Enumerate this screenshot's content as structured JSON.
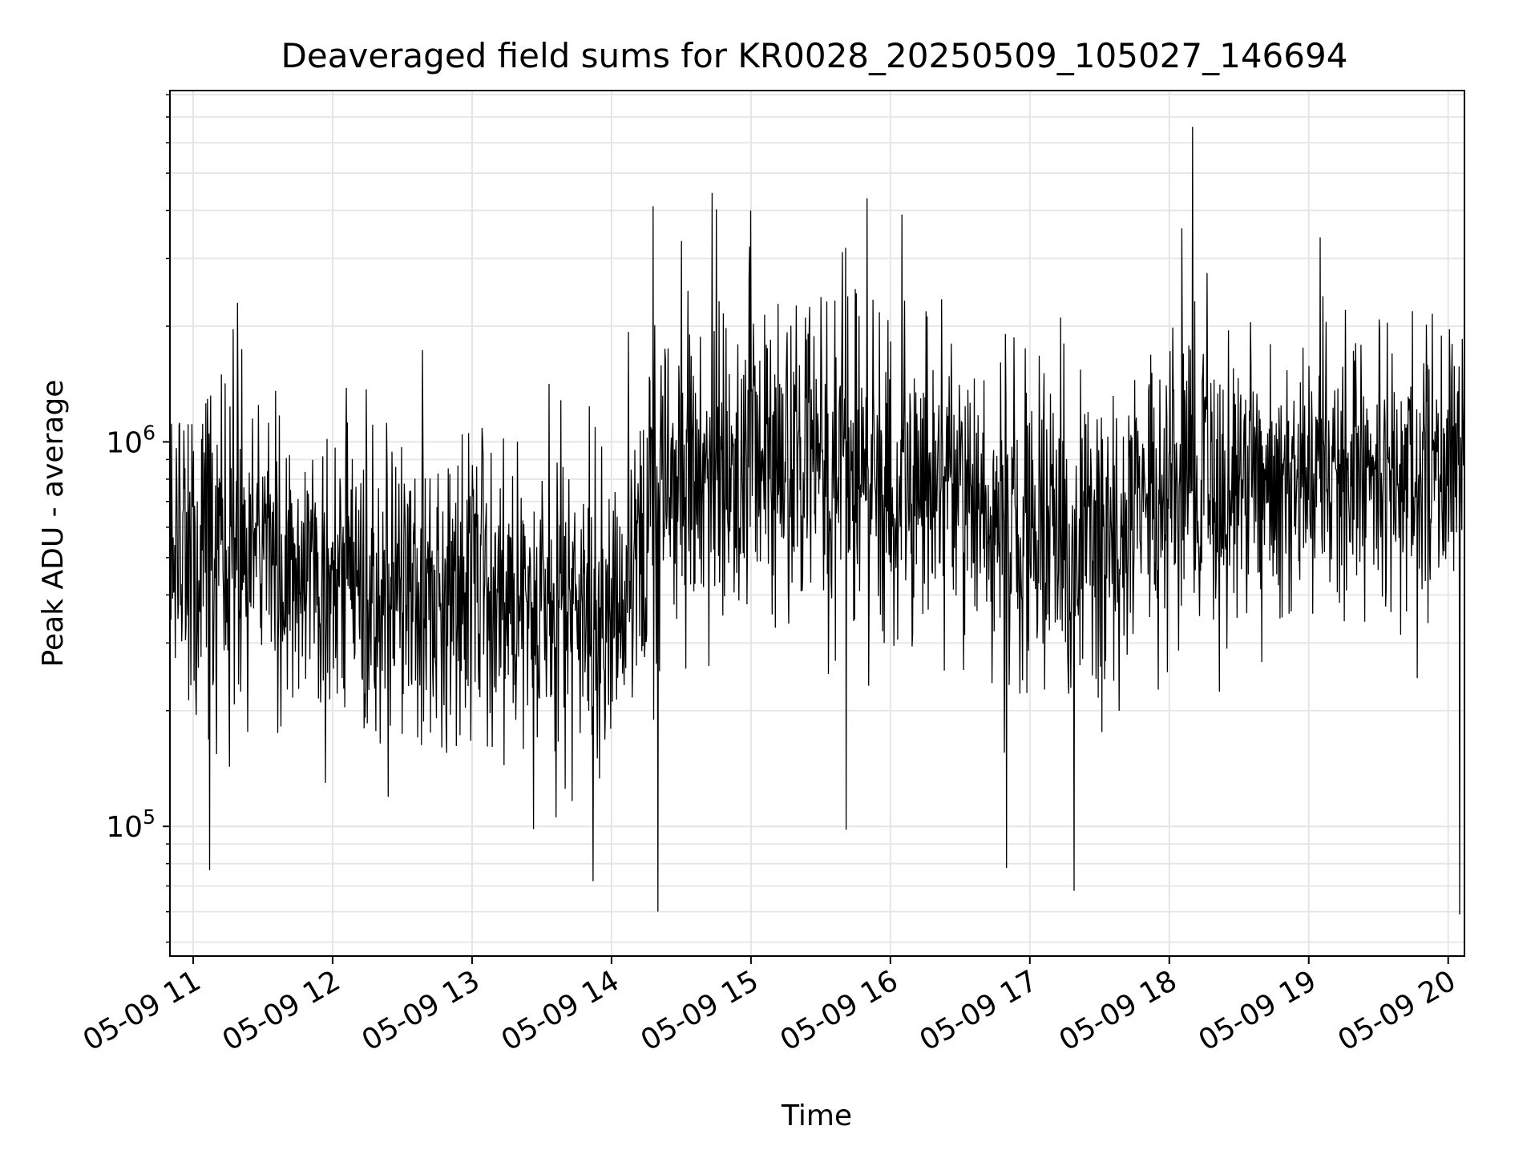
{
  "chart_data": {
    "type": "line",
    "title": "Deaveraged field sums for KR0028_20250509_105027_146694",
    "xlabel": "Time",
    "ylabel": "Peak ADU - average",
    "yscale": "log",
    "ylim": [
      46000,
      8200000
    ],
    "xlim": [
      "2025-05-09T10:50",
      "2025-05-09T20:07"
    ],
    "grid": true,
    "x_tick_labels": [
      "05-09 11",
      "05-09 12",
      "05-09 13",
      "05-09 14",
      "05-09 15",
      "05-09 16",
      "05-09 17",
      "05-09 18",
      "05-09 19",
      "05-09 20"
    ],
    "x_tick_values": [
      "2025-05-09T11:00",
      "2025-05-09T12:00",
      "2025-05-09T13:00",
      "2025-05-09T14:00",
      "2025-05-09T15:00",
      "2025-05-09T16:00",
      "2025-05-09T17:00",
      "2025-05-09T18:00",
      "2025-05-09T19:00",
      "2025-05-09T20:00"
    ],
    "y_major_ticks": [
      {
        "value": 100000,
        "base": "10",
        "exp": "5"
      },
      {
        "value": 1000000,
        "base": "10",
        "exp": "6"
      }
    ],
    "series": [
      {
        "color": "#000000",
        "profile": [
          {
            "x": "2025-05-09T10:50",
            "median": 500000,
            "spread": 1.65
          },
          {
            "x": "2025-05-09T11:30",
            "median": 560000,
            "spread": 1.6
          },
          {
            "x": "2025-05-09T12:00",
            "median": 440000,
            "spread": 1.55
          },
          {
            "x": "2025-05-09T12:30",
            "median": 400000,
            "spread": 1.55
          },
          {
            "x": "2025-05-09T13:00",
            "median": 420000,
            "spread": 1.55
          },
          {
            "x": "2025-05-09T13:30",
            "median": 380000,
            "spread": 1.55
          },
          {
            "x": "2025-05-09T14:00",
            "median": 360000,
            "spread": 1.6
          },
          {
            "x": "2025-05-09T14:20",
            "median": 800000,
            "spread": 1.7
          },
          {
            "x": "2025-05-09T15:00",
            "median": 900000,
            "spread": 1.7
          },
          {
            "x": "2025-05-09T15:30",
            "median": 950000,
            "spread": 1.65
          },
          {
            "x": "2025-05-09T16:00",
            "median": 780000,
            "spread": 1.65
          },
          {
            "x": "2025-05-09T16:30",
            "median": 680000,
            "spread": 1.6
          },
          {
            "x": "2025-05-09T17:00",
            "median": 600000,
            "spread": 1.6
          },
          {
            "x": "2025-05-09T17:30",
            "median": 580000,
            "spread": 1.6
          },
          {
            "x": "2025-05-09T18:00",
            "median": 760000,
            "spread": 1.6
          },
          {
            "x": "2025-05-09T19:00",
            "median": 820000,
            "spread": 1.55
          },
          {
            "x": "2025-05-09T20:07",
            "median": 850000,
            "spread": 1.55
          }
        ],
        "samples_per_hour": 260,
        "noted_extremes": [
          {
            "x": "2025-05-09T14:18",
            "value": 4100000
          },
          {
            "x": "2025-05-09T14:20",
            "value": 60000
          },
          {
            "x": "2025-05-09T18:10",
            "value": 6600000
          },
          {
            "x": "2025-05-09T17:19",
            "value": 68000
          },
          {
            "x": "2025-05-09T11:07",
            "value": 77000
          },
          {
            "x": "2025-05-09T13:52",
            "value": 72000
          },
          {
            "x": "2025-05-09T20:05",
            "value": 59000
          },
          {
            "x": "2025-05-09T15:50",
            "value": 4300000
          },
          {
            "x": "2025-05-09T16:05",
            "value": 3900000
          },
          {
            "x": "2025-05-09T15:00",
            "value": 4000000
          },
          {
            "x": "2025-05-09T11:19",
            "value": 2300000
          },
          {
            "x": "2025-05-09T19:05",
            "value": 3400000
          },
          {
            "x": "2025-05-09T15:41",
            "value": 98000
          },
          {
            "x": "2025-05-09T16:50",
            "value": 78000
          }
        ]
      }
    ]
  }
}
